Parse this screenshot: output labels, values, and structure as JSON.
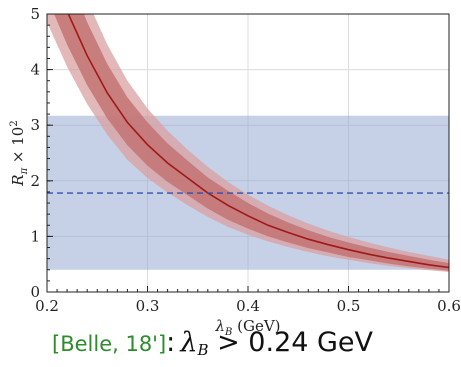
{
  "chart_data": {
    "type": "line",
    "xlabel": "λ_B (GeV)",
    "ylabel": "R_π × 10^2",
    "xlim": [
      0.2,
      0.6
    ],
    "ylim": [
      0,
      5
    ],
    "x_ticks": [
      "0.2",
      "0.3",
      "0.4",
      "0.5",
      "0.6"
    ],
    "y_ticks": [
      "0",
      "1",
      "2",
      "3",
      "4",
      "5"
    ],
    "grid": true,
    "series": [
      {
        "kind": "line",
        "color": "#a01818",
        "x": [
          0.2,
          0.22,
          0.24,
          0.26,
          0.28,
          0.3,
          0.32,
          0.34,
          0.36,
          0.38,
          0.4,
          0.42,
          0.44,
          0.46,
          0.48,
          0.5,
          0.52,
          0.54,
          0.56,
          0.58,
          0.6
        ],
        "y": [
          6.0,
          5.05,
          4.25,
          3.58,
          3.05,
          2.65,
          2.32,
          2.05,
          1.78,
          1.56,
          1.37,
          1.2,
          1.07,
          0.95,
          0.85,
          0.76,
          0.68,
          0.61,
          0.55,
          0.49,
          0.44
        ]
      },
      {
        "kind": "band-inner",
        "color": "#c06b6b",
        "x": [
          0.2,
          0.22,
          0.24,
          0.26,
          0.28,
          0.3,
          0.32,
          0.34,
          0.36,
          0.38,
          0.4,
          0.42,
          0.44,
          0.46,
          0.48,
          0.5,
          0.52,
          0.54,
          0.56,
          0.58,
          0.6
        ],
        "y_low": [
          5.3,
          4.45,
          3.72,
          3.12,
          2.64,
          2.27,
          1.98,
          1.74,
          1.5,
          1.3,
          1.14,
          1.0,
          0.89,
          0.79,
          0.71,
          0.63,
          0.57,
          0.51,
          0.46,
          0.42,
          0.38
        ],
        "y_high": [
          6.8,
          5.75,
          4.85,
          4.1,
          3.5,
          3.05,
          2.67,
          2.36,
          2.06,
          1.82,
          1.6,
          1.41,
          1.25,
          1.11,
          0.99,
          0.89,
          0.8,
          0.72,
          0.65,
          0.58,
          0.52
        ]
      },
      {
        "kind": "band-outer",
        "color": "#d9a0a0",
        "x": [
          0.2,
          0.22,
          0.24,
          0.26,
          0.28,
          0.3,
          0.32,
          0.34,
          0.36,
          0.38,
          0.4,
          0.42,
          0.44,
          0.46,
          0.48,
          0.5,
          0.52,
          0.54,
          0.56,
          0.58,
          0.6
        ],
        "y_low": [
          4.85,
          4.05,
          3.38,
          2.83,
          2.38,
          2.05,
          1.79,
          1.56,
          1.35,
          1.17,
          1.03,
          0.91,
          0.81,
          0.72,
          0.64,
          0.58,
          0.52,
          0.47,
          0.43,
          0.39,
          0.36
        ],
        "y_high": [
          7.3,
          6.2,
          5.25,
          4.45,
          3.8,
          3.3,
          2.9,
          2.56,
          2.25,
          1.98,
          1.75,
          1.55,
          1.38,
          1.23,
          1.1,
          0.99,
          0.89,
          0.8,
          0.72,
          0.65,
          0.58
        ]
      },
      {
        "kind": "horizontal-band",
        "color": "#8ea2d0",
        "y_low": 0.4,
        "y_high": 3.17
      },
      {
        "kind": "dashed-line",
        "color": "#3050b0",
        "y": 1.78
      }
    ]
  },
  "caption": {
    "reference": "[Belle, 18']",
    "colon": ":",
    "lhs": "λ",
    "lhs_sub": "B",
    "relation": " > 0.24 GeV"
  }
}
